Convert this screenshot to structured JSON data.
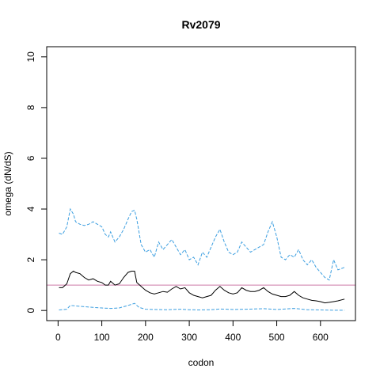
{
  "chart_data": {
    "type": "line",
    "title": "Rv2079",
    "xlabel": "codon",
    "ylabel": "omega (dN/dS)",
    "xlim": [
      -26,
      680
    ],
    "ylim": [
      -0.4,
      10.4
    ],
    "xticks": [
      0,
      100,
      200,
      300,
      400,
      500,
      600
    ],
    "yticks": [
      0,
      2,
      4,
      6,
      8,
      10
    ],
    "grid": false,
    "reference_line": {
      "y": 1,
      "color": "#cc79a7"
    },
    "colors": {
      "estimate": "#000000",
      "bounds": "#3b9ee0",
      "reference": "#cc79a7"
    },
    "series": [
      {
        "role": "upper",
        "style": "dashed",
        "x": [
          2,
          10,
          20,
          28,
          35,
          40,
          50,
          60,
          70,
          80,
          90,
          100,
          108,
          115,
          120,
          130,
          140,
          150,
          160,
          168,
          175,
          180,
          190,
          200,
          210,
          220,
          230,
          240,
          250,
          260,
          270,
          280,
          290,
          300,
          310,
          320,
          330,
          340,
          350,
          360,
          370,
          380,
          390,
          400,
          410,
          420,
          430,
          440,
          450,
          460,
          470,
          480,
          490,
          500,
          510,
          520,
          530,
          540,
          550,
          560,
          570,
          580,
          590,
          600,
          610,
          620,
          630,
          640,
          655
        ],
        "y": [
          3.05,
          3.0,
          3.3,
          4.0,
          3.8,
          3.5,
          3.4,
          3.35,
          3.4,
          3.5,
          3.4,
          3.3,
          3.0,
          2.9,
          3.1,
          2.7,
          2.9,
          3.2,
          3.6,
          3.9,
          3.95,
          3.6,
          2.6,
          2.3,
          2.4,
          2.1,
          2.7,
          2.4,
          2.6,
          2.8,
          2.5,
          2.2,
          2.4,
          2.0,
          2.1,
          1.8,
          2.3,
          2.1,
          2.5,
          2.9,
          3.2,
          2.7,
          2.3,
          2.2,
          2.3,
          2.7,
          2.5,
          2.3,
          2.4,
          2.5,
          2.6,
          3.1,
          3.5,
          2.9,
          2.1,
          2.0,
          2.2,
          2.1,
          2.4,
          2.0,
          1.8,
          2.0,
          1.7,
          1.5,
          1.3,
          1.2,
          2.0,
          1.6,
          1.7
        ]
      },
      {
        "role": "estimate",
        "style": "solid",
        "x": [
          2,
          10,
          20,
          28,
          35,
          40,
          50,
          60,
          70,
          80,
          90,
          100,
          108,
          115,
          120,
          130,
          140,
          150,
          160,
          168,
          175,
          180,
          190,
          200,
          210,
          220,
          230,
          240,
          250,
          260,
          270,
          280,
          290,
          300,
          310,
          320,
          330,
          340,
          350,
          360,
          370,
          380,
          390,
          400,
          410,
          420,
          430,
          440,
          450,
          460,
          470,
          480,
          490,
          500,
          510,
          520,
          530,
          540,
          550,
          560,
          570,
          580,
          590,
          600,
          610,
          620,
          630,
          640,
          655
        ],
        "y": [
          0.9,
          0.9,
          1.05,
          1.45,
          1.55,
          1.5,
          1.45,
          1.3,
          1.2,
          1.25,
          1.15,
          1.1,
          1.0,
          1.0,
          1.15,
          1.0,
          1.05,
          1.3,
          1.5,
          1.55,
          1.55,
          1.1,
          0.95,
          0.8,
          0.7,
          0.65,
          0.7,
          0.75,
          0.72,
          0.85,
          0.95,
          0.85,
          0.9,
          0.7,
          0.6,
          0.55,
          0.5,
          0.55,
          0.6,
          0.8,
          0.95,
          0.8,
          0.7,
          0.65,
          0.7,
          0.9,
          0.8,
          0.75,
          0.75,
          0.8,
          0.9,
          0.75,
          0.65,
          0.6,
          0.55,
          0.55,
          0.6,
          0.75,
          0.6,
          0.5,
          0.45,
          0.4,
          0.38,
          0.35,
          0.3,
          0.32,
          0.35,
          0.38,
          0.45
        ]
      },
      {
        "role": "lower",
        "style": "dashed",
        "x": [
          2,
          20,
          28,
          40,
          60,
          80,
          100,
          120,
          140,
          160,
          175,
          185,
          200,
          220,
          250,
          280,
          300,
          320,
          350,
          370,
          400,
          430,
          470,
          500,
          540,
          570,
          600,
          630,
          655
        ],
        "y": [
          0.02,
          0.05,
          0.2,
          0.18,
          0.15,
          0.12,
          0.1,
          0.08,
          0.1,
          0.2,
          0.28,
          0.12,
          0.05,
          0.04,
          0.03,
          0.05,
          0.03,
          0.02,
          0.03,
          0.06,
          0.04,
          0.05,
          0.07,
          0.04,
          0.08,
          0.03,
          0.02,
          0.01,
          0.01
        ]
      }
    ]
  }
}
